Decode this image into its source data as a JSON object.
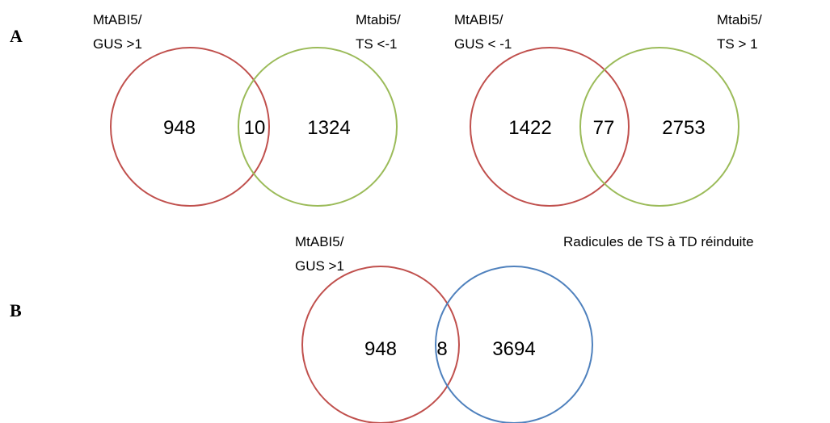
{
  "colors": {
    "red": "#c0504d",
    "green": "#9bbb59",
    "blue": "#4f81bd"
  },
  "panels": {
    "a": "A",
    "b": "B"
  },
  "venns": [
    {
      "left_label": [
        "MtABI5/",
        "GUS >1"
      ],
      "right_label": [
        "Mtabi5/",
        "TS <-1"
      ],
      "left_only": "948",
      "overlap": "10",
      "right_only": "1324",
      "left_color": "red",
      "right_color": "green"
    },
    {
      "left_label": [
        "MtABI5/",
        "GUS < -1"
      ],
      "right_label": [
        "Mtabi5/",
        "TS > 1"
      ],
      "left_only": "1422",
      "overlap": "77",
      "right_only": "2753",
      "left_color": "red",
      "right_color": "green"
    },
    {
      "left_label": [
        "MtABI5/",
        "GUS >1"
      ],
      "right_label": [
        "Radicules de TS à TD réinduite"
      ],
      "left_only": "948",
      "overlap": "8",
      "right_only": "3694",
      "left_color": "red",
      "right_color": "blue"
    }
  ]
}
